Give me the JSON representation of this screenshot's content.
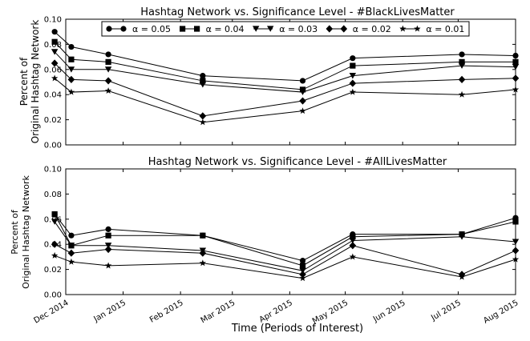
{
  "figure": {
    "xlabel": "Time (Periods of Interest)",
    "xticks": [
      "Dec 2014",
      "Jan 2015",
      "Feb 2015",
      "Mar 2015",
      "Apr 2015",
      "May 2015",
      "Jun 2015",
      "Jul 2015",
      "Aug 2015"
    ]
  },
  "chart_data": [
    {
      "type": "line",
      "title": "Hashtag Network vs. Significance Level - #BlackLivesMatter",
      "ylabel": [
        "Percent of",
        "Original Hashtag Network"
      ],
      "ylim": [
        0,
        0.1
      ],
      "yticks": [
        "0.00",
        "0.02",
        "0.04",
        "0.06",
        "0.08",
        "0.10"
      ],
      "x": [
        "Dec 2014",
        "Dec 2014",
        "Jan 2015",
        "Feb 2015",
        "Apr 2015",
        "May 2015",
        "Jul 2015",
        "Aug 2015"
      ],
      "grid": false,
      "legend": "top",
      "series": [
        {
          "name": "α = 0.05",
          "marker": "circle",
          "values": [
            0.09,
            0.078,
            0.072,
            0.055,
            0.051,
            0.069,
            0.072,
            0.071
          ]
        },
        {
          "name": "α = 0.04",
          "marker": "square",
          "values": [
            0.082,
            0.068,
            0.066,
            0.051,
            0.044,
            0.063,
            0.066,
            0.066
          ]
        },
        {
          "name": "α = 0.03",
          "marker": "triangle-down",
          "values": [
            0.074,
            0.06,
            0.06,
            0.048,
            0.042,
            0.055,
            0.063,
            0.062
          ]
        },
        {
          "name": "α = 0.02",
          "marker": "diamond",
          "values": [
            0.065,
            0.052,
            0.051,
            0.023,
            0.035,
            0.049,
            0.052,
            0.053
          ]
        },
        {
          "name": "α = 0.01",
          "marker": "star",
          "values": [
            0.053,
            0.042,
            0.043,
            0.018,
            0.027,
            0.042,
            0.04,
            0.044
          ]
        }
      ]
    },
    {
      "type": "line",
      "title": "Hashtag Network vs. Significance Level - #AllLivesMatter",
      "ylabel": [
        "Percent of",
        "Original Hashtag Network"
      ],
      "ylim": [
        0,
        0.1
      ],
      "yticks": [
        "0.00",
        "0.02",
        "0.04",
        "0.06",
        "0.08",
        "0.10"
      ],
      "x": [
        "Dec 2014",
        "Dec 2014",
        "Jan 2015",
        "Feb 2015",
        "Apr 2015",
        "May 2015",
        "Jul 2015",
        "Aug 2015"
      ],
      "grid": false,
      "series": [
        {
          "name": "α = 0.05",
          "marker": "circle",
          "values": [
            0.064,
            0.047,
            0.052,
            0.047,
            0.027,
            0.048,
            0.048,
            0.061
          ]
        },
        {
          "name": "α = 0.04",
          "marker": "square",
          "values": [
            0.064,
            0.039,
            0.047,
            0.047,
            0.023,
            0.046,
            0.048,
            0.058
          ]
        },
        {
          "name": "α = 0.03",
          "marker": "triangle-down",
          "values": [
            0.058,
            0.039,
            0.039,
            0.035,
            0.019,
            0.043,
            0.046,
            0.042
          ]
        },
        {
          "name": "α = 0.02",
          "marker": "diamond",
          "values": [
            0.04,
            0.033,
            0.036,
            0.033,
            0.016,
            0.039,
            0.016,
            0.035
          ]
        },
        {
          "name": "α = 0.01",
          "marker": "star",
          "values": [
            0.031,
            0.026,
            0.023,
            0.025,
            0.013,
            0.03,
            0.014,
            0.028
          ]
        }
      ]
    }
  ]
}
